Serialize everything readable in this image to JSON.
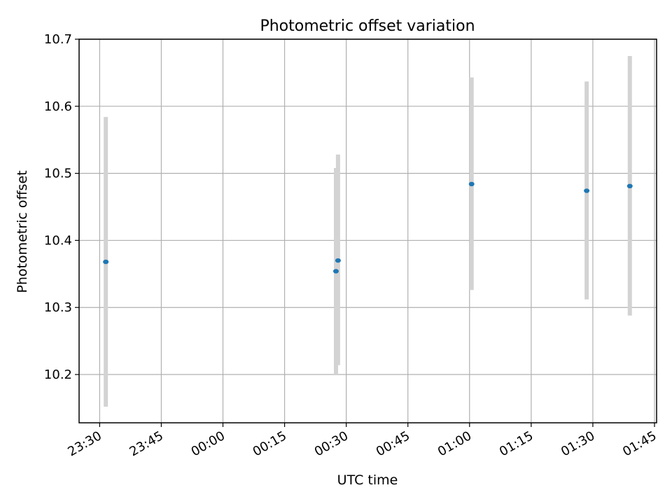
{
  "chart_data": {
    "type": "scatter",
    "title": "Photometric offset variation",
    "xlabel": "UTC time",
    "ylabel": "Photometric offset",
    "x_range": [
      "23:25",
      "01:45"
    ],
    "ylim": [
      10.128,
      10.7
    ],
    "grid": true,
    "legend": "none",
    "x_ticks": [
      "23:30",
      "23:45",
      "00:00",
      "00:15",
      "00:30",
      "00:45",
      "01:00",
      "01:15",
      "01:30",
      "01:45"
    ],
    "y_ticks": [
      10.2,
      10.3,
      10.4,
      10.5,
      10.6,
      10.7
    ],
    "y_tick_labels": [
      "10.2",
      "10.3",
      "10.4",
      "10.5",
      "10.6",
      "10.7"
    ],
    "points": [
      {
        "time": "23:31.5",
        "value": 10.368,
        "low": 10.152,
        "high": 10.584
      },
      {
        "time": "00:27.5",
        "value": 10.354,
        "low": 10.2,
        "high": 10.508
      },
      {
        "time": "00:28.0",
        "value": 10.37,
        "low": 10.214,
        "high": 10.528
      },
      {
        "time": "01:00.5",
        "value": 10.484,
        "low": 10.326,
        "high": 10.643
      },
      {
        "time": "01:28.5",
        "value": 10.474,
        "low": 10.312,
        "high": 10.637
      },
      {
        "time": "01:39.0",
        "value": 10.481,
        "low": 10.288,
        "high": 10.675
      }
    ],
    "colors": {
      "point": "#1f77b4",
      "errorbar": "#d3d3d3",
      "grid": "#b0b0b0",
      "axes": "#000000"
    }
  }
}
